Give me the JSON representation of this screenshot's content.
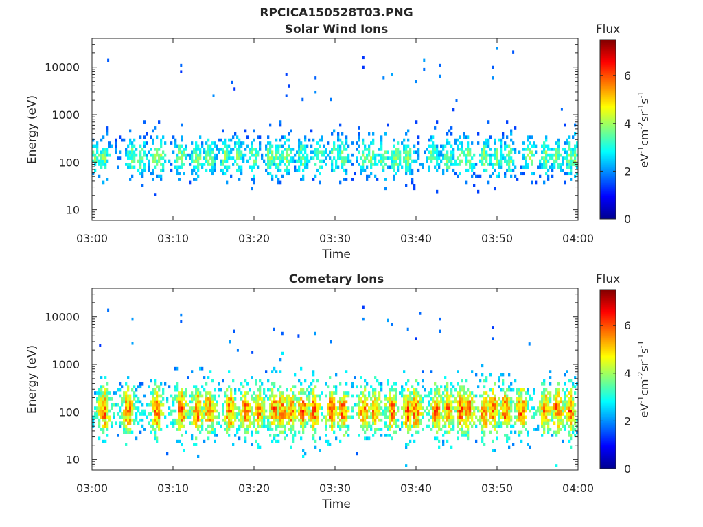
{
  "figure": {
    "filename": "RPCICA150528T03.PNG"
  },
  "colorbar": {
    "title": "Flux",
    "unit_label": "eV-1cm-2sr-1s-1",
    "range": [
      0,
      7.5
    ],
    "ticks": [
      0,
      2,
      4,
      6
    ],
    "colormap": "jet"
  },
  "chart_data": [
    {
      "type": "heatmap",
      "title": "Solar Wind Ions",
      "xlabel": "Time",
      "ylabel": "Energy (eV)",
      "x_ticks": [
        "03:00",
        "03:10",
        "03:20",
        "03:30",
        "03:40",
        "03:50",
        "04:00"
      ],
      "xlim_minutes": [
        0,
        60
      ],
      "y_ticks": [
        "10",
        "100",
        "1000",
        "10000"
      ],
      "y_scale": "log",
      "ylim": [
        6,
        40000
      ],
      "band_center_eV": 130,
      "band_spread_decades": 0.35,
      "peak_flux": 4.2,
      "cluster_minutes": [
        0.5,
        1.5,
        5,
        6,
        7.8,
        8.4,
        11,
        13,
        14.5,
        16.5,
        18,
        20,
        22,
        23,
        24,
        26,
        28,
        30,
        31,
        33.5,
        34.5,
        36,
        37.5,
        39,
        42,
        44,
        45.5,
        46.5,
        48.5,
        50,
        51.5,
        54,
        56,
        57.5,
        59,
        59.7
      ],
      "sparse_high_points": [
        [
          2,
          14000
        ],
        [
          11,
          11000
        ],
        [
          11,
          8000
        ],
        [
          15,
          2500
        ],
        [
          17.3,
          4800
        ],
        [
          17.6,
          3500
        ],
        [
          24,
          7000
        ],
        [
          24,
          2500
        ],
        [
          24.3,
          4000
        ],
        [
          26,
          2100
        ],
        [
          27.6,
          6000
        ],
        [
          27.6,
          3000
        ],
        [
          29.5,
          2100
        ],
        [
          33.5,
          16000
        ],
        [
          33.5,
          10000
        ],
        [
          36,
          6000
        ],
        [
          37,
          7000
        ],
        [
          41,
          14000
        ],
        [
          41,
          9000
        ],
        [
          40,
          5000
        ],
        [
          43,
          11000
        ],
        [
          43,
          6500
        ],
        [
          45,
          2000
        ],
        [
          49.5,
          10000
        ],
        [
          49.5,
          6000
        ],
        [
          50,
          25000
        ],
        [
          52,
          21000
        ],
        [
          58,
          1300
        ]
      ]
    },
    {
      "type": "heatmap",
      "title": "Cometary Ions",
      "xlabel": "Time",
      "ylabel": "Energy (eV)",
      "x_ticks": [
        "03:00",
        "03:10",
        "03:20",
        "03:30",
        "03:40",
        "03:50",
        "04:00"
      ],
      "xlim_minutes": [
        0,
        60
      ],
      "y_ticks": [
        "10",
        "100",
        "1000",
        "10000"
      ],
      "y_scale": "log",
      "ylim": [
        6,
        40000
      ],
      "band_center_eV": 110,
      "band_spread_decades": 0.45,
      "peak_flux": 6.3,
      "cluster_minutes": [
        1.5,
        4.5,
        8,
        11,
        13,
        14.5,
        17,
        19,
        20.5,
        22.5,
        23.5,
        24.5,
        26,
        27.5,
        29.5,
        31,
        33.5,
        35,
        37,
        39,
        40,
        42.5,
        44,
        45.5,
        46.5,
        48.5,
        49.5,
        51,
        53,
        56,
        57.5,
        59
      ],
      "sparse_high_points": [
        [
          1,
          2500
        ],
        [
          2,
          14000
        ],
        [
          5,
          9000
        ],
        [
          5,
          2800
        ],
        [
          11,
          11000
        ],
        [
          11,
          8000
        ],
        [
          17.5,
          5000
        ],
        [
          17,
          3000
        ],
        [
          18,
          2000
        ],
        [
          19.8,
          1800
        ],
        [
          22.5,
          5500
        ],
        [
          23.5,
          4500
        ],
        [
          25.5,
          4000
        ],
        [
          27.5,
          4500
        ],
        [
          29.5,
          3000
        ],
        [
          33.5,
          16000
        ],
        [
          33.5,
          9000
        ],
        [
          36.5,
          8500
        ],
        [
          37,
          7000
        ],
        [
          39,
          5500
        ],
        [
          40,
          3500
        ],
        [
          40.5,
          12000
        ],
        [
          43,
          9000
        ],
        [
          43,
          5000
        ],
        [
          49.5,
          6000
        ],
        [
          49.5,
          3500
        ],
        [
          54,
          2700
        ]
      ]
    }
  ]
}
